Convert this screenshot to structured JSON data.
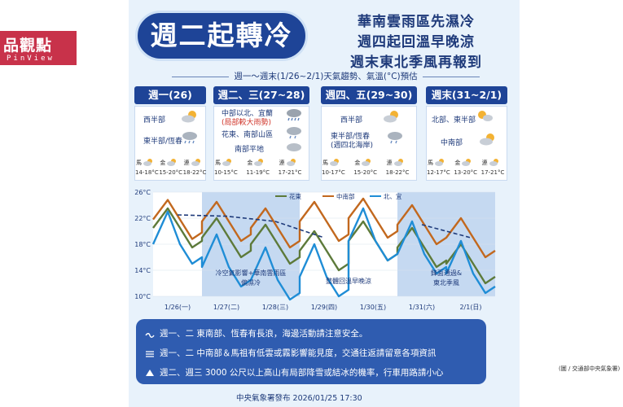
{
  "brand": {
    "main": "品觀點",
    "sub": "PinView"
  },
  "title": "週二起轉冷",
  "subtitles": [
    "華南雲雨區先濕冷",
    "週四起回溫早晚涼",
    "週末東北季風再報到"
  ],
  "period_label": "週一～週末(1/26~2/1)天氣趨勢、氣溫(°C)預估",
  "days": [
    {
      "header": "週一(26)",
      "lines": [
        "西半部",
        "東半部/恆春"
      ],
      "temps": [
        {
          "region": "馬",
          "range": "14-18°C"
        },
        {
          "region": "金",
          "range": "15-20°C"
        },
        {
          "region": "連",
          "range": "18-22°C"
        }
      ]
    },
    {
      "header": "週二、三(27~28)",
      "lines": [
        "中部以北、宜蘭",
        "(局部較大雨勢)",
        "花東、南部山區",
        "南部平地"
      ],
      "temps": [
        {
          "region": "馬",
          "range": "10-15°C"
        },
        {
          "region": "金",
          "range": "11-19°C"
        },
        {
          "region": "連",
          "range": "17-21°C"
        }
      ]
    },
    {
      "header": "週四、五(29~30)",
      "lines": [
        "西半部",
        "東半部/恆春",
        "(週四北海岸)"
      ],
      "temps": [
        {
          "region": "馬",
          "range": "10-17°C"
        },
        {
          "region": "金",
          "range": "15-20°C"
        },
        {
          "region": "連",
          "range": "18-22°C"
        }
      ]
    },
    {
      "header": "週末(31~2/1)",
      "lines": [
        "北部、東半部",
        "中南部"
      ],
      "temps": [
        {
          "region": "馬",
          "range": "12-17°C"
        },
        {
          "region": "金",
          "range": "13-20°C"
        },
        {
          "region": "連",
          "range": "17-21°C"
        }
      ]
    }
  ],
  "chart": {
    "legend": [
      "花東",
      "中南部",
      "北、宜"
    ],
    "y_ticks": [
      "26°C",
      "22°C",
      "18°C",
      "14°C",
      "10°C"
    ],
    "x_labels": [
      "1/26(一)",
      "1/27(二)",
      "1/28(三)",
      "1/29(四)",
      "1/30(五)",
      "1/31(六)",
      "2/1(日)"
    ],
    "annotations": [
      "冷空氣影響+華南雲雨區",
      "偏濕冷",
      "整體回溫早晚涼",
      "鋒面通過&",
      "東北季風"
    ]
  },
  "chart_data": {
    "type": "line",
    "ylim": [
      10,
      26
    ],
    "y_ticks": [
      10,
      14,
      18,
      22,
      26
    ],
    "x": [
      "1/26(一)",
      "1/27(二)",
      "1/28(三)",
      "1/29(四)",
      "1/30(五)",
      "1/31(六)",
      "2/1(日)"
    ],
    "series": [
      {
        "name": "花東",
        "color": "#5d7a3a",
        "values": [
          23.5,
          22.0,
          21.0,
          20.0,
          21.5,
          20.5,
          18.0
        ]
      },
      {
        "name": "中南部",
        "color": "#c2681e",
        "values": [
          24.8,
          24.5,
          23.5,
          24.5,
          25.0,
          24.0,
          22.0
        ]
      },
      {
        "name": "北、宜",
        "color": "#1f8dd6",
        "values": [
          23.0,
          19.5,
          17.5,
          18.0,
          23.5,
          21.5,
          18.5
        ]
      }
    ],
    "trend_line": {
      "color": "#1e3a7a",
      "values": [
        22.5,
        22.3,
        21.5,
        19.0,
        null,
        21.0,
        19.0
      ]
    }
  },
  "notes": [
    "週一、二  東南部、恆春有長浪，海邊活動請注意安全。",
    "週一、二  中南部＆馬祖有低雲或霧影響能見度，交通往返請留意各項資訊",
    "週二、週三  3000 公尺以上高山有局部降雪或結冰的機率，行車用路請小心"
  ],
  "footer": "中央氣象署發布  2026/01/25  17:30",
  "credit": "(圖 / 交通部中央氣象署)"
}
